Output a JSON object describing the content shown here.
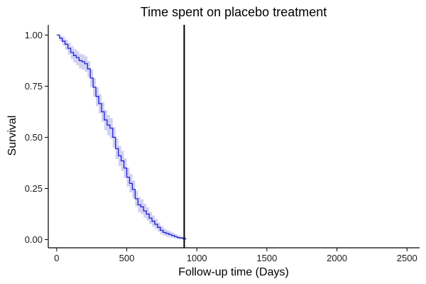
{
  "chart_data": {
    "type": "line",
    "title": "Time spent on placebo treatment",
    "xlabel": "Follow-up time (Days)",
    "ylabel": "Survival",
    "xlim": [
      -60,
      2590
    ],
    "ylim": [
      -0.04,
      1.05
    ],
    "x_ticks": [
      0,
      500,
      1000,
      1500,
      2000,
      2500
    ],
    "x_tick_labels": [
      "0",
      "500",
      "1000",
      "1500",
      "2000",
      "2500"
    ],
    "y_ticks": [
      0.0,
      0.25,
      0.5,
      0.75,
      1.0
    ],
    "y_tick_labels": [
      "0.00",
      "0.25",
      "0.50",
      "0.75",
      "1.00"
    ],
    "grid": false,
    "legend": "none",
    "reference_line_x": 910,
    "colors": {
      "line": "#1f1fd6",
      "ribbon": "#c9c9f2",
      "reference": "#000000",
      "axis": "#000000"
    },
    "series": [
      {
        "x": [
          0,
          20,
          40,
          60,
          80,
          100,
          120,
          140,
          160,
          180,
          200,
          220,
          240,
          260,
          280,
          300,
          320,
          340,
          360,
          380,
          400,
          420,
          440,
          460,
          480,
          500,
          520,
          540,
          560,
          580,
          600,
          620,
          640,
          660,
          680,
          700,
          720,
          740,
          760,
          780,
          800,
          820,
          840,
          860,
          880,
          900,
          920
        ],
        "y": [
          1.0,
          0.985,
          0.97,
          0.955,
          0.935,
          0.915,
          0.9,
          0.89,
          0.875,
          0.87,
          0.86,
          0.835,
          0.79,
          0.745,
          0.7,
          0.665,
          0.625,
          0.585,
          0.56,
          0.545,
          0.5,
          0.445,
          0.41,
          0.385,
          0.35,
          0.305,
          0.275,
          0.245,
          0.2,
          0.17,
          0.16,
          0.14,
          0.125,
          0.105,
          0.09,
          0.075,
          0.06,
          0.045,
          0.035,
          0.03,
          0.025,
          0.02,
          0.015,
          0.01,
          0.008,
          0.005,
          0.002
        ],
        "lower": [
          1.0,
          0.97,
          0.948,
          0.928,
          0.905,
          0.882,
          0.865,
          0.853,
          0.837,
          0.831,
          0.82,
          0.793,
          0.746,
          0.699,
          0.653,
          0.617,
          0.576,
          0.535,
          0.51,
          0.495,
          0.45,
          0.395,
          0.36,
          0.336,
          0.302,
          0.259,
          0.231,
          0.203,
          0.162,
          0.134,
          0.125,
          0.107,
          0.094,
          0.077,
          0.064,
          0.051,
          0.039,
          0.027,
          0.019,
          0.015,
          0.011,
          0.008,
          0.005,
          0.002,
          0.001,
          0.0,
          0.0
        ],
        "upper": [
          1.0,
          0.998,
          0.99,
          0.978,
          0.962,
          0.945,
          0.932,
          0.923,
          0.909,
          0.905,
          0.896,
          0.873,
          0.832,
          0.789,
          0.745,
          0.711,
          0.672,
          0.633,
          0.609,
          0.594,
          0.55,
          0.495,
          0.459,
          0.434,
          0.398,
          0.352,
          0.32,
          0.289,
          0.24,
          0.208,
          0.197,
          0.175,
          0.158,
          0.135,
          0.118,
          0.101,
          0.083,
          0.066,
          0.054,
          0.047,
          0.041,
          0.034,
          0.027,
          0.02,
          0.017,
          0.012,
          0.007
        ]
      }
    ]
  }
}
